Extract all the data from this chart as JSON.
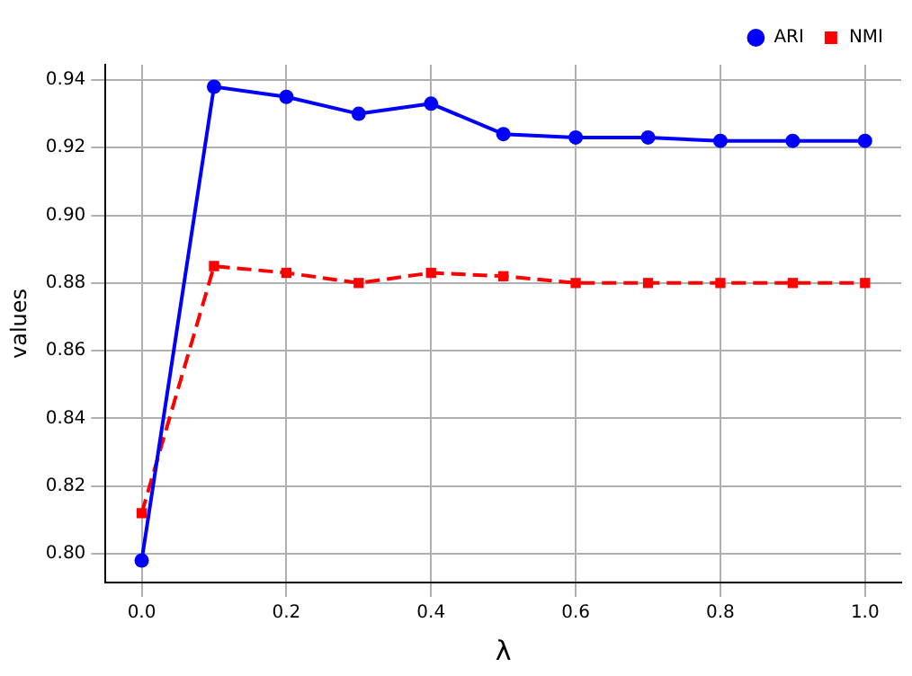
{
  "chart_data": {
    "type": "line",
    "xlabel": "λ",
    "ylabel": "values",
    "x": [
      0,
      0.1,
      0.2,
      0.3,
      0.4,
      0.5,
      0.6,
      0.7,
      0.8,
      0.9,
      1.0
    ],
    "series": [
      {
        "name": "ARI",
        "color": "#0000ff",
        "marker": "circle",
        "line_style": "solid",
        "values": [
          0.798,
          0.938,
          0.935,
          0.93,
          0.933,
          0.924,
          0.923,
          0.923,
          0.922,
          0.922,
          0.922
        ]
      },
      {
        "name": "NMI",
        "color": "#ff0000",
        "marker": "square",
        "line_style": "dashed",
        "values": [
          0.812,
          0.885,
          0.883,
          0.88,
          0.883,
          0.882,
          0.88,
          0.88,
          0.88,
          0.88,
          0.88
        ]
      }
    ],
    "xlim": [
      -0.05,
      1.05
    ],
    "xticks": [
      {
        "value": 0,
        "label": "0.0"
      },
      {
        "value": 0.2,
        "label": "0.2"
      },
      {
        "value": 0.4,
        "label": "0.4"
      },
      {
        "value": 0.6,
        "label": "0.6"
      },
      {
        "value": 0.8,
        "label": "0.8"
      },
      {
        "value": 1,
        "label": "1.0"
      }
    ],
    "ylim": [
      0.7915,
      0.9445
    ],
    "yticks": [
      {
        "value": 0.8,
        "label": "0.80"
      },
      {
        "value": 0.82,
        "label": "0.82"
      },
      {
        "value": 0.84,
        "label": "0.84"
      },
      {
        "value": 0.86,
        "label": "0.86"
      },
      {
        "value": 0.88,
        "label": "0.88"
      },
      {
        "value": 0.9,
        "label": "0.90"
      },
      {
        "value": 0.92,
        "label": "0.92"
      },
      {
        "value": 0.94,
        "label": "0.94"
      }
    ],
    "grid": true,
    "legend": "top right"
  }
}
